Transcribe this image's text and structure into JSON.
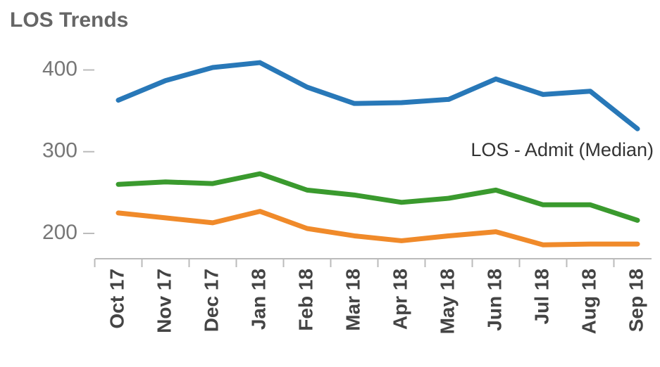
{
  "chart_data": {
    "type": "line",
    "title": "LOS Trends",
    "annotation": "LOS - Admit (Median)",
    "categories": [
      "Oct 17",
      "Nov 17",
      "Dec 17",
      "Jan 18",
      "Feb 18",
      "Mar 18",
      "Apr 18",
      "May 18",
      "Jun 18",
      "Jul 18",
      "Aug 18",
      "Sep 18"
    ],
    "series": [
      {
        "color": "#2878b8",
        "values": [
          363,
          387,
          403,
          409,
          379,
          359,
          360,
          364,
          389,
          370,
          374,
          328
        ]
      },
      {
        "color": "#3a9a2e",
        "values": [
          260,
          263,
          261,
          273,
          253,
          247,
          238,
          243,
          253,
          235,
          235,
          216
        ]
      },
      {
        "color": "#f08a2a",
        "values": [
          225,
          219,
          213,
          227,
          206,
          197,
          191,
          197,
          202,
          186,
          187,
          187
        ]
      }
    ],
    "ylim": [
      169,
      434
    ],
    "yticks": [
      200,
      300,
      400
    ]
  }
}
